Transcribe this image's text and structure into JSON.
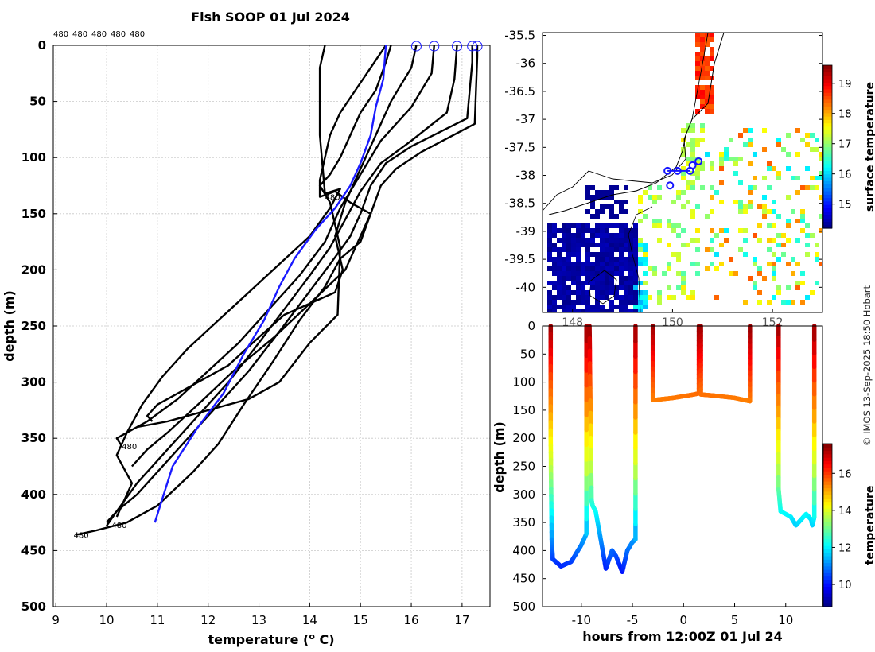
{
  "page": {
    "title": "Fish SOOP 01 Jul 2024",
    "copyright": "© IMOS 13-Sep-2025 18:50 Hobart"
  },
  "colors": {
    "profile": "#000000",
    "mean_profile": "#1a1aff",
    "grid": "#c8c8c8",
    "land": "#ffffff",
    "track": "#1414ff"
  },
  "chart_data": [
    {
      "type": "line",
      "title": "Fish SOOP 01 Jul 2024",
      "xlabel": "temperature (",
      "xlabel_sup": "o",
      "xlabel_end": " C)",
      "ylabel": "depth (m)",
      "xlim": [
        8.95,
        17.55
      ],
      "ylim": [
        500,
        0
      ],
      "xticks": [
        9,
        10,
        11,
        12,
        13,
        14,
        15,
        16,
        17
      ],
      "yticks": [
        0,
        50,
        100,
        150,
        200,
        250,
        300,
        350,
        400,
        450,
        500
      ],
      "grid": true,
      "top_labels": [
        "480",
        "480",
        "480",
        "480",
        "480"
      ],
      "drop_labels": [
        {
          "text": "480",
          "x": 14.3,
          "y": 135
        },
        {
          "text": "480",
          "x": 10.3,
          "y": 357
        },
        {
          "text": "480",
          "x": 10.1,
          "y": 427
        },
        {
          "text": "480",
          "x": 9.35,
          "y": 436
        }
      ],
      "surface_markers": [
        16.1,
        16.45,
        16.9,
        17.2,
        17.3
      ],
      "series": [
        {
          "name": "profile-1",
          "temperature": [
            17.3,
            17.3,
            17.25,
            16.2,
            15.7,
            15.4,
            15.2,
            15.0,
            14.6,
            14.3,
            13.8,
            13.3,
            12.7,
            12.2,
            11.7,
            11.0,
            10.4,
            9.8,
            9.4
          ],
          "depth": [
            0,
            10,
            70,
            95,
            110,
            125,
            150,
            175,
            190,
            215,
            245,
            280,
            320,
            355,
            380,
            410,
            425,
            432,
            436
          ]
        },
        {
          "name": "profile-2",
          "temperature": [
            17.2,
            17.2,
            17.1,
            16.0,
            15.5,
            15.2,
            15.0,
            14.8,
            14.4,
            13.9,
            13.4,
            12.8,
            12.2,
            11.6,
            11.0,
            10.6,
            10.2,
            10.0
          ],
          "depth": [
            0,
            15,
            65,
            90,
            105,
            125,
            150,
            170,
            195,
            225,
            255,
            290,
            320,
            350,
            380,
            400,
            415,
            425
          ]
        },
        {
          "name": "profile-3",
          "temperature": [
            16.9,
            16.85,
            16.7,
            16.0,
            15.4,
            15.0,
            14.7,
            14.4,
            14.0,
            13.5,
            13.0,
            12.4,
            11.8,
            11.2,
            10.6,
            10.2,
            10.0
          ],
          "depth": [
            0,
            30,
            60,
            85,
            105,
            130,
            155,
            180,
            205,
            235,
            265,
            300,
            330,
            360,
            390,
            415,
            428
          ]
        },
        {
          "name": "profile-4",
          "temperature": [
            16.45,
            16.4,
            16.0,
            15.4,
            15.0,
            14.6,
            14.3,
            13.8,
            13.2,
            12.6,
            12.0,
            11.4,
            10.8,
            10.4,
            10.2,
            10.3
          ],
          "depth": [
            0,
            25,
            55,
            85,
            115,
            145,
            175,
            205,
            235,
            265,
            290,
            315,
            335,
            345,
            350,
            357
          ]
        },
        {
          "name": "profile-5",
          "temperature": [
            16.1,
            16.0,
            15.6,
            15.3,
            15.0,
            14.7,
            14.5,
            14.6,
            14.65,
            14.5,
            13.5,
            13.0,
            12.4,
            11.6,
            11.0,
            10.8,
            10.9
          ],
          "depth": [
            0,
            20,
            50,
            80,
            110,
            140,
            170,
            190,
            200,
            220,
            240,
            260,
            285,
            305,
            320,
            330,
            335
          ]
        },
        {
          "name": "profile-6",
          "temperature": [
            15.6,
            15.5,
            15.3,
            15.0,
            14.8,
            14.6,
            14.4,
            14.2,
            14.4,
            14.6,
            14.55,
            14.0,
            13.4,
            12.8,
            12.0,
            11.2,
            10.6
          ],
          "depth": [
            0,
            15,
            40,
            60,
            80,
            100,
            115,
            125,
            140,
            180,
            240,
            265,
            300,
            315,
            325,
            335,
            340
          ]
        },
        {
          "name": "profile-7",
          "temperature": [
            15.5,
            15.2,
            14.9,
            14.6,
            14.4,
            14.3,
            14.2,
            14.2,
            14.5,
            14.8,
            15.2,
            15.0,
            14.7,
            14.0,
            13.3,
            12.5,
            11.8,
            11.2,
            10.8,
            10.5
          ],
          "depth": [
            0,
            20,
            40,
            60,
            80,
            100,
            120,
            135,
            130,
            140,
            150,
            170,
            200,
            230,
            260,
            290,
            320,
            345,
            360,
            375
          ]
        },
        {
          "name": "profile-8",
          "temperature": [
            14.3,
            14.2,
            14.2,
            14.3,
            14.6,
            14.4,
            14.0,
            13.4,
            12.8,
            12.2,
            11.6,
            11.1,
            10.7,
            10.4,
            10.2,
            10.5,
            10.2
          ],
          "depth": [
            0,
            20,
            80,
            132,
            128,
            145,
            170,
            195,
            220,
            245,
            270,
            295,
            320,
            345,
            365,
            390,
            420
          ]
        }
      ],
      "mean": {
        "name": "mean-profile",
        "temperature": [
          15.5,
          15.45,
          15.3,
          15.2,
          15.0,
          14.8,
          14.5,
          14.1,
          13.7,
          13.4,
          13.1,
          12.7,
          12.3,
          11.8,
          11.3,
          10.95
        ],
        "depth": [
          0,
          30,
          55,
          80,
          105,
          125,
          145,
          165,
          190,
          215,
          245,
          275,
          310,
          340,
          375,
          425
        ]
      }
    },
    {
      "type": "heatmap",
      "subtype": "map",
      "colorbar_label": "surface temperature",
      "xlim": [
        147.4,
        153.0
      ],
      "ylim": [
        -40.45,
        -35.45
      ],
      "yticks": [
        -35.5,
        -36,
        -36.5,
        -37,
        -37.5,
        -38,
        -38.5,
        -39,
        -39.5,
        -40
      ],
      "yticklabels": [
        "-35.5",
        "-36",
        "-36.5",
        "-37",
        "-37.5",
        "-38",
        "-38.5",
        "-39",
        "-39.5",
        "-40"
      ],
      "xticks": [
        148,
        150,
        152
      ],
      "xticklabels": [
        "148",
        "150",
        "152"
      ],
      "clim": [
        14.2,
        19.6
      ],
      "cticks": [
        15,
        16,
        17,
        18,
        19
      ],
      "track_points": [
        {
          "lon": 149.9,
          "lat": -37.92
        },
        {
          "lon": 150.1,
          "lat": -37.92
        },
        {
          "lon": 150.35,
          "lat": -37.92
        },
        {
          "lon": 150.4,
          "lat": -37.82
        },
        {
          "lon": 150.52,
          "lat": -37.75
        },
        {
          "lon": 149.95,
          "lat": -38.18
        }
      ]
    },
    {
      "type": "scatter",
      "subtype": "depth-time",
      "xlabel": "hours from 12:00Z 01 Jul 24",
      "ylabel": "depth (m)",
      "colorbar_label": "temperature",
      "xlim": [
        -13.8,
        13.6
      ],
      "ylim": [
        500,
        0
      ],
      "xticks": [
        -10,
        -5,
        0,
        5,
        10
      ],
      "yticks": [
        0,
        50,
        100,
        150,
        200,
        250,
        300,
        350,
        400,
        450,
        500
      ],
      "clim": [
        8.8,
        17.6
      ],
      "cticks": [
        10,
        12,
        14,
        16
      ],
      "casts": [
        {
          "name": "cast-1",
          "h": [
            -13.0,
            -13.0,
            -12.9,
            -12.8,
            -12.0,
            -11.0,
            -10.0,
            -9.5,
            -9.5
          ],
          "depth": [
            0,
            200,
            380,
            415,
            428,
            420,
            390,
            370,
            0
          ]
        },
        {
          "name": "cast-2",
          "h": [
            -9.2,
            -9.0,
            -8.9,
            -8.6,
            -8.2,
            -7.6,
            -7.0,
            -6.6,
            -6.0,
            -5.5,
            -5.0,
            -4.7,
            -4.7
          ],
          "depth": [
            0,
            310,
            320,
            330,
            370,
            432,
            400,
            410,
            438,
            400,
            385,
            380,
            0
          ]
        },
        {
          "name": "cast-3",
          "h": [
            -3.0,
            -3.0,
            -2.0,
            -1.0,
            0.0,
            1.0,
            1.5,
            1.5
          ],
          "depth": [
            0,
            132,
            130,
            128,
            125,
            122,
            120,
            0
          ]
        },
        {
          "name": "cast-4",
          "h": [
            1.7,
            1.7,
            3.0,
            5.0,
            6.5,
            6.5
          ],
          "depth": [
            0,
            122,
            124,
            128,
            134,
            0
          ]
        },
        {
          "name": "cast-5",
          "h": [
            9.3,
            9.3,
            9.5,
            10.5,
            11.0,
            11.5,
            12.0,
            12.5,
            12.6,
            12.8,
            12.8
          ],
          "depth": [
            0,
            290,
            330,
            340,
            355,
            345,
            335,
            345,
            355,
            340,
            0
          ]
        }
      ]
    }
  ]
}
